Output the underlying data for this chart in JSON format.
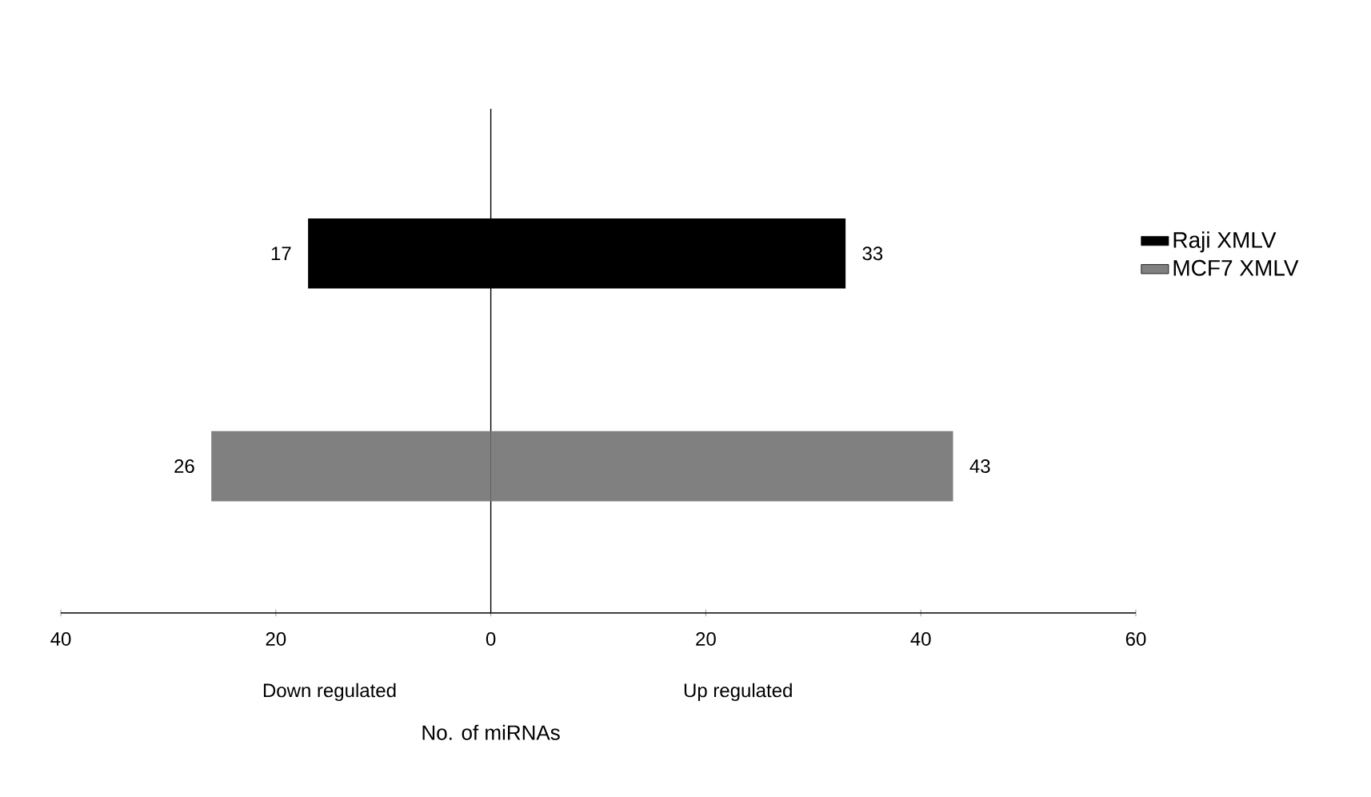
{
  "chart_data": {
    "type": "bar",
    "orientation": "horizontal",
    "categories": [
      null,
      null
    ],
    "series": [
      {
        "name": "Raji XMLV",
        "color": "#000000",
        "values": [
          17,
          null
        ],
        "base": [
          -17,
          null
        ],
        "value_labels": [
          "17",
          null
        ]
      },
      {
        "color": "#000000",
        "values": [
          33,
          null
        ],
        "value_labels": [
          "33",
          null
        ]
      },
      {
        "name": "MCF7 XMLV",
        "color": "#808080",
        "values": [
          null,
          26
        ],
        "base": [
          null,
          -26
        ],
        "value_labels": [
          null,
          "26"
        ]
      },
      {
        "color": "#808080",
        "values": [
          null,
          43
        ],
        "value_labels": [
          null,
          "43"
        ]
      }
    ],
    "xlim": [
      -40,
      60
    ],
    "xticks": [
      {
        "value": -40,
        "label": "40"
      },
      {
        "value": -20,
        "label": "20"
      },
      0,
      20,
      40,
      60
    ],
    "xlabel": "No. of miRNAs",
    "annotations": [
      "Down regulated",
      "Up regulated"
    ],
    "legend": "right"
  }
}
